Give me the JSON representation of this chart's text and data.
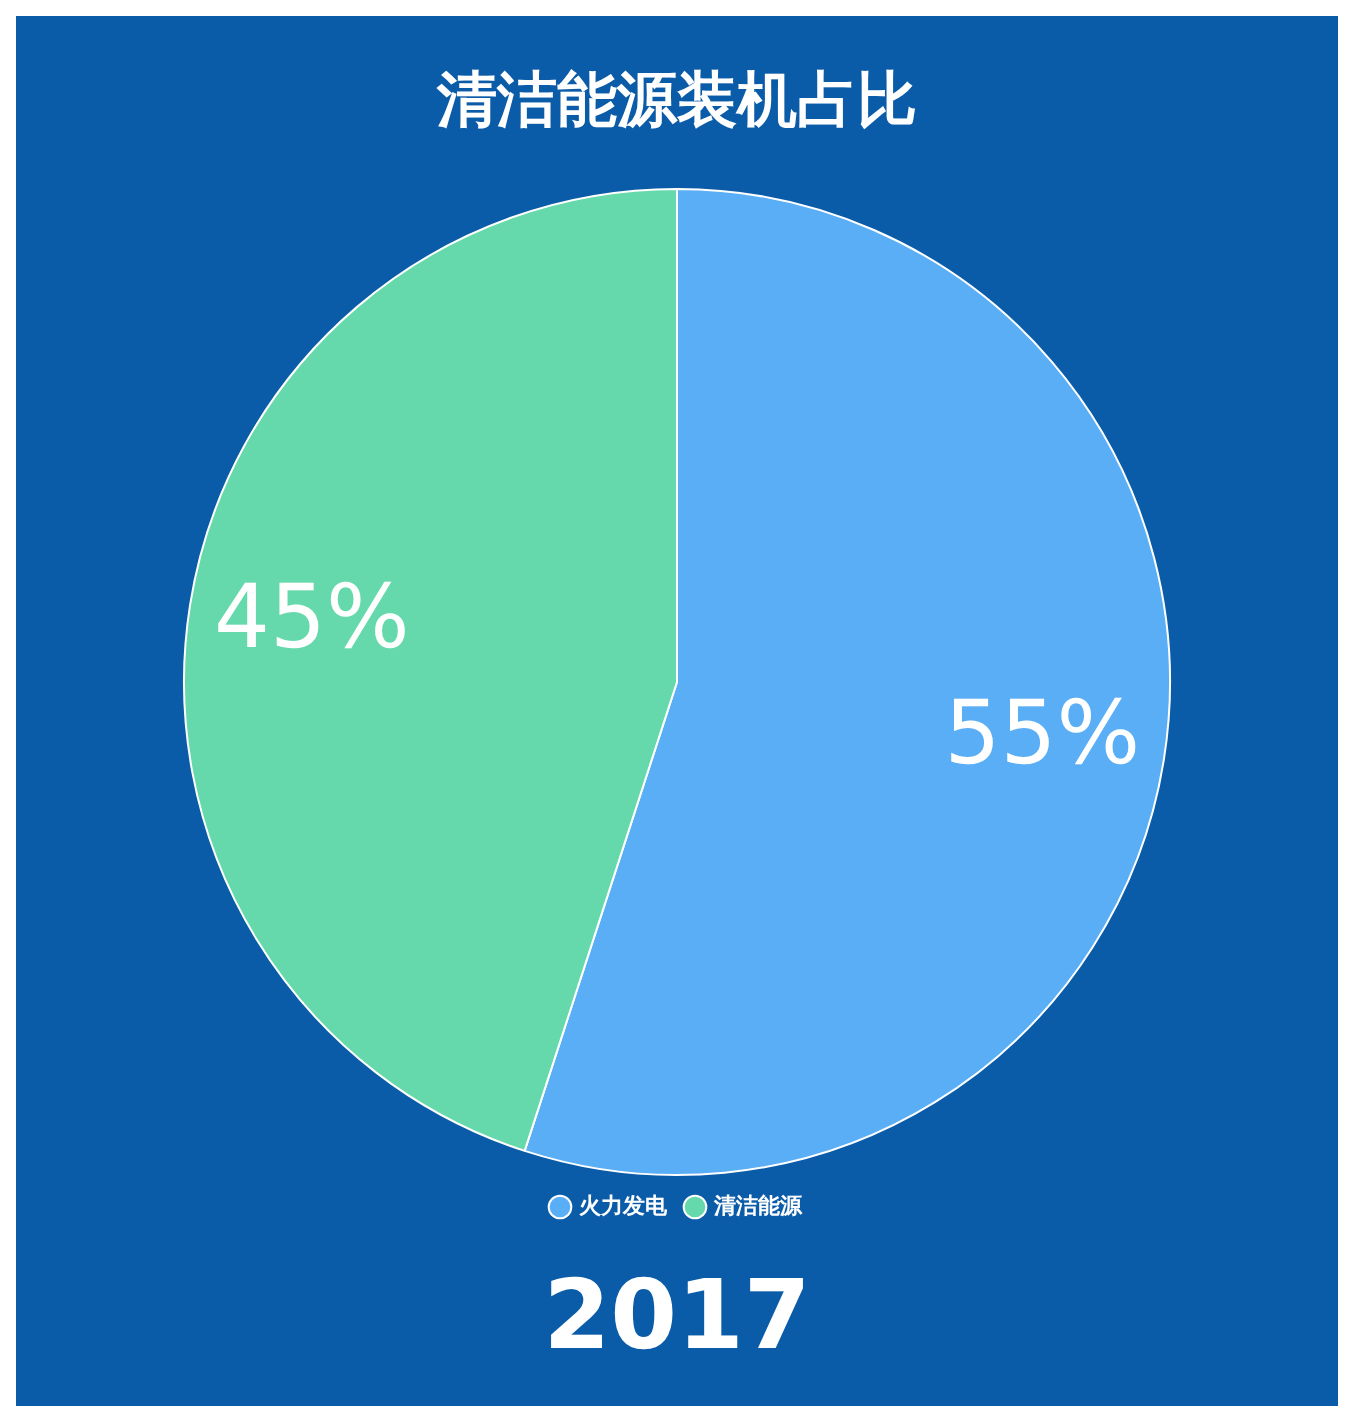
{
  "chart_data": {
    "type": "pie",
    "title": "清洁能源装机占比",
    "categories": [
      "火力发电",
      "清洁能源"
    ],
    "values": [
      55,
      45
    ],
    "colors": [
      "#5aaef5",
      "#66d9ac"
    ],
    "value_labels": [
      "55%",
      "45%"
    ],
    "legend": "bottom",
    "annotations": [
      "2017"
    ]
  }
}
